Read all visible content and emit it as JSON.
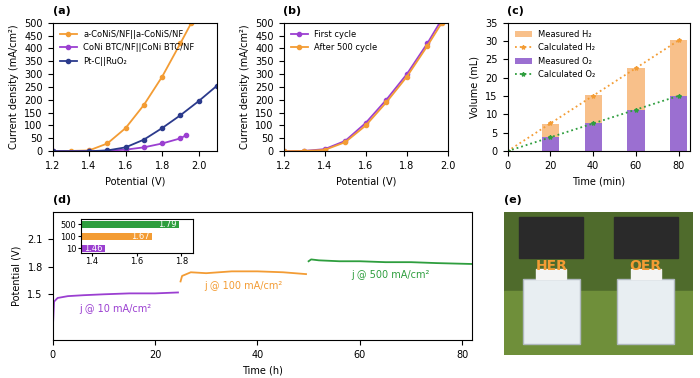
{
  "chart_data": [
    {
      "type": "line",
      "title": "(a)",
      "x_label": "Potential (V)",
      "y_label": "Current density (mA/cm²)",
      "xlim": [
        1.2,
        2.1
      ],
      "xticks": [
        1.2,
        1.4,
        1.6,
        1.8,
        2.0
      ],
      "ylim": [
        0,
        500
      ],
      "yticks": [
        0,
        50,
        100,
        150,
        200,
        250,
        300,
        350,
        400,
        450,
        500
      ],
      "legend": "upper left",
      "series": [
        {
          "name": "a-CoNiS/NF||a-CoNiS/NF",
          "color": "#f39c34",
          "marker": "circle",
          "x": [
            1.2,
            1.3,
            1.4,
            1.5,
            1.6,
            1.7,
            1.8,
            1.9,
            1.96
          ],
          "values": [
            0,
            1,
            3,
            30,
            90,
            180,
            290,
            420,
            500
          ]
        },
        {
          "name": "CoNi BTC/NF||CoNi BTC/NF",
          "color": "#9b3fd1",
          "marker": "circle",
          "x": [
            1.2,
            1.4,
            1.5,
            1.6,
            1.7,
            1.8,
            1.9,
            1.93
          ],
          "values": [
            0,
            0,
            2,
            6,
            15,
            30,
            50,
            62
          ]
        },
        {
          "name": "Pt-C||RuO₂",
          "color": "#2b3a8c",
          "marker": "circle",
          "x": [
            1.2,
            1.4,
            1.5,
            1.6,
            1.7,
            1.8,
            1.9,
            2.0,
            2.1
          ],
          "values": [
            0,
            0,
            3,
            15,
            45,
            90,
            140,
            195,
            255
          ]
        }
      ]
    },
    {
      "type": "line",
      "title": "(b)",
      "x_label": "Potential (V)",
      "y_label": "Current density (mA/cm²)",
      "xlim": [
        1.2,
        2.0
      ],
      "xticks": [
        1.2,
        1.4,
        1.6,
        1.8,
        2.0
      ],
      "ylim": [
        0,
        500
      ],
      "yticks": [
        0,
        50,
        100,
        150,
        200,
        250,
        300,
        350,
        400,
        450,
        500
      ],
      "legend": "upper left",
      "series": [
        {
          "name": "First cycle",
          "color": "#9b3fd1",
          "marker": "circle",
          "x": [
            1.2,
            1.3,
            1.4,
            1.5,
            1.6,
            1.7,
            1.8,
            1.9,
            1.96
          ],
          "values": [
            0,
            1,
            8,
            40,
            110,
            200,
            300,
            420,
            500
          ]
        },
        {
          "name": "After 500 cycle",
          "color": "#f39c34",
          "marker": "circle",
          "x": [
            1.2,
            1.3,
            1.4,
            1.5,
            1.6,
            1.7,
            1.8,
            1.9,
            1.97
          ],
          "values": [
            0,
            1,
            5,
            35,
            100,
            190,
            290,
            410,
            500
          ]
        }
      ]
    },
    {
      "type": "bar",
      "title": "(c)",
      "x_label": "Time (min)",
      "y_label": "Volume (mL)",
      "xlim": [
        0,
        85
      ],
      "xticks": [
        0,
        20,
        40,
        60,
        80
      ],
      "ylim": [
        0,
        35
      ],
      "yticks": [
        0,
        5,
        10,
        15,
        20,
        25,
        30,
        35
      ],
      "legend": "upper left",
      "series": [
        {
          "name": "Measured H₂",
          "type": "bar",
          "color": "#f8c08a",
          "x": [
            20,
            40,
            60,
            80
          ],
          "values": [
            7.5,
            15.2,
            22.6,
            30.2
          ]
        },
        {
          "name": "Calculated H₂",
          "type": "line",
          "color": "#f39c34",
          "marker": "star",
          "line_style": "dotted",
          "x": [
            0,
            20,
            40,
            60,
            80
          ],
          "values": [
            0,
            7.55,
            15.1,
            22.65,
            30.2
          ]
        },
        {
          "name": "Measured O₂",
          "type": "bar",
          "color": "#9b6fd1",
          "x": [
            20,
            40,
            60,
            80
          ],
          "values": [
            3.8,
            7.7,
            11.2,
            15.0
          ]
        },
        {
          "name": "Calculated O₂",
          "type": "line",
          "color": "#2e9e3e",
          "marker": "star",
          "line_style": "dotted",
          "x": [
            0,
            20,
            40,
            60,
            80
          ],
          "values": [
            0,
            3.78,
            7.55,
            11.33,
            15.1
          ]
        }
      ]
    },
    {
      "type": "line",
      "title": "(d)",
      "x_label": "Time (h)",
      "y_label": "Potential (V)",
      "xlim": [
        0,
        82
      ],
      "xticks": [
        0,
        20,
        40,
        60,
        80
      ],
      "ylim": [
        1.0,
        2.4
      ],
      "yticks": [
        1.5,
        1.8,
        2.1
      ],
      "annotations": [
        "j @ 10 mA/cm²",
        "j @ 100 mA/cm²",
        "j @ 500 mA/cm²"
      ],
      "series": [
        {
          "color": "#9b3fd1",
          "x": [
            0,
            0.3,
            1,
            3,
            6,
            10,
            15,
            20,
            24.5
          ],
          "values": [
            1.05,
            1.42,
            1.46,
            1.48,
            1.49,
            1.5,
            1.51,
            1.51,
            1.52
          ]
        },
        {
          "color": "#f39c34",
          "x": [
            25,
            25.3,
            27,
            30,
            35,
            40,
            45,
            49.5
          ],
          "values": [
            1.64,
            1.7,
            1.74,
            1.73,
            1.75,
            1.75,
            1.74,
            1.72
          ]
        },
        {
          "color": "#2e9e3e",
          "x": [
            50,
            50.5,
            52,
            56,
            60,
            65,
            70,
            75,
            82
          ],
          "values": [
            1.86,
            1.88,
            1.87,
            1.86,
            1.86,
            1.85,
            1.85,
            1.84,
            1.83
          ]
        }
      ]
    },
    {
      "type": "bar",
      "orientation": "horizontal",
      "data_labels": true,
      "categories": [
        "10",
        "100",
        "500"
      ],
      "values": [
        1.46,
        1.67,
        1.79
      ],
      "colors": [
        "#9b3fd1",
        "#f39c34",
        "#2e9e3e"
      ],
      "xlim": [
        1.35,
        1.85
      ],
      "xticks": [
        1.4,
        1.6,
        1.8
      ]
    },
    {
      "type": "image",
      "title": "(e)",
      "annotations": [
        "HER",
        "OER"
      ]
    }
  ]
}
